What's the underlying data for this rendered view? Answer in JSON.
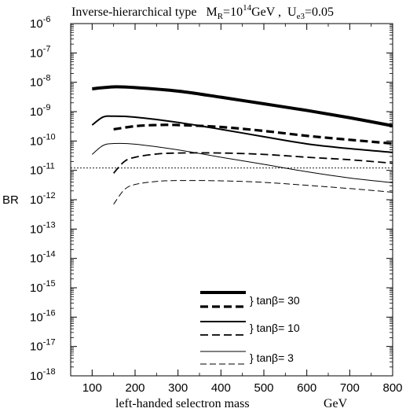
{
  "chart_data": {
    "type": "line",
    "title": {
      "prefix": "Inverse-hierarchical type",
      "mr_main": "M",
      "mr_sub": "R",
      "mr_eq": "=10",
      "mr_exp": "14",
      "mr_unit": "GeV ,",
      "ue_main": "U",
      "ue_sub": "e3",
      "ue_eq": "=0.05"
    },
    "xlabel": "left-handed selectron mass",
    "xunit": "GeV",
    "ylabel": "BR",
    "xlim": [
      50,
      800
    ],
    "ylim_log10": [
      -18,
      -6
    ],
    "log_y": true,
    "x_ticks": [
      "100",
      "200",
      "300",
      "400",
      "500",
      "600",
      "700",
      "800"
    ],
    "y_ticks": [
      {
        "base": "10",
        "exp": "-6"
      },
      {
        "base": "10",
        "exp": "-7"
      },
      {
        "base": "10",
        "exp": "-8"
      },
      {
        "base": "10",
        "exp": "-9"
      },
      {
        "base": "10",
        "exp": "-10"
      },
      {
        "base": "10",
        "exp": "-11"
      },
      {
        "base": "10",
        "exp": "-12"
      },
      {
        "base": "10",
        "exp": "-13"
      },
      {
        "base": "10",
        "exp": "-14"
      },
      {
        "base": "10",
        "exp": "-15"
      },
      {
        "base": "10",
        "exp": "-16"
      },
      {
        "base": "10",
        "exp": "-17"
      },
      {
        "base": "10",
        "exp": "-18"
      }
    ],
    "reference_line": {
      "y": 1.2e-11
    },
    "series": [
      {
        "tanb": "30",
        "style": "solid",
        "weight": "thick",
        "x": [
          100,
          150,
          200,
          300,
          400,
          500,
          600,
          700,
          800
        ],
        "y": [
          6e-09,
          7e-09,
          6.6e-09,
          5e-09,
          3.1e-09,
          1.85e-09,
          1.1e-09,
          6.2e-10,
          3.3e-10
        ]
      },
      {
        "tanb": "30",
        "style": "dashed",
        "weight": "thick",
        "x": [
          150,
          200,
          250,
          300,
          400,
          500,
          600,
          700,
          800
        ],
        "y": [
          2.5e-10,
          3.2e-10,
          3.5e-10,
          3.5e-10,
          3e-10,
          2.2e-10,
          1.5e-10,
          1.1e-10,
          8.2e-11
        ]
      },
      {
        "tanb": "10",
        "style": "solid",
        "weight": "medium",
        "x": [
          100,
          125,
          150,
          200,
          300,
          400,
          500,
          600,
          700,
          800
        ],
        "y": [
          3.5e-10,
          6.5e-10,
          7e-10,
          6.5e-10,
          4.3e-10,
          2.5e-10,
          1.4e-10,
          8e-11,
          5.5e-11,
          4.1e-11
        ]
      },
      {
        "tanb": "10",
        "style": "dashed",
        "weight": "medium",
        "x": [
          150,
          175,
          200,
          250,
          300,
          400,
          500,
          600,
          700,
          800
        ],
        "y": [
          8e-12,
          2e-11,
          2.8e-11,
          3.6e-11,
          3.9e-11,
          3.9e-11,
          3.5e-11,
          2.8e-11,
          2.3e-11,
          1.75e-11
        ]
      },
      {
        "tanb": "3",
        "style": "solid",
        "weight": "thin",
        "x": [
          100,
          125,
          150,
          200,
          300,
          400,
          500,
          600,
          700,
          800
        ],
        "y": [
          3.5e-11,
          7e-11,
          8.2e-11,
          7.8e-11,
          5e-11,
          2.8e-11,
          1.6e-11,
          9e-12,
          5.5e-12,
          3.8e-12
        ]
      },
      {
        "tanb": "3",
        "style": "dashed",
        "weight": "thin",
        "x": [
          150,
          175,
          200,
          250,
          300,
          400,
          500,
          600,
          700,
          800
        ],
        "y": [
          7e-13,
          2.2e-12,
          3.3e-12,
          4.2e-12,
          4.5e-12,
          4.4e-12,
          3.9e-12,
          3.1e-12,
          2.4e-12,
          1.8e-12
        ]
      }
    ],
    "legend": {
      "placement": "bottom-center",
      "entries": [
        {
          "label": "} tanβ= 30"
        },
        {
          "label": "} tanβ= 10"
        },
        {
          "label": "}  tanβ= 3"
        }
      ]
    }
  }
}
